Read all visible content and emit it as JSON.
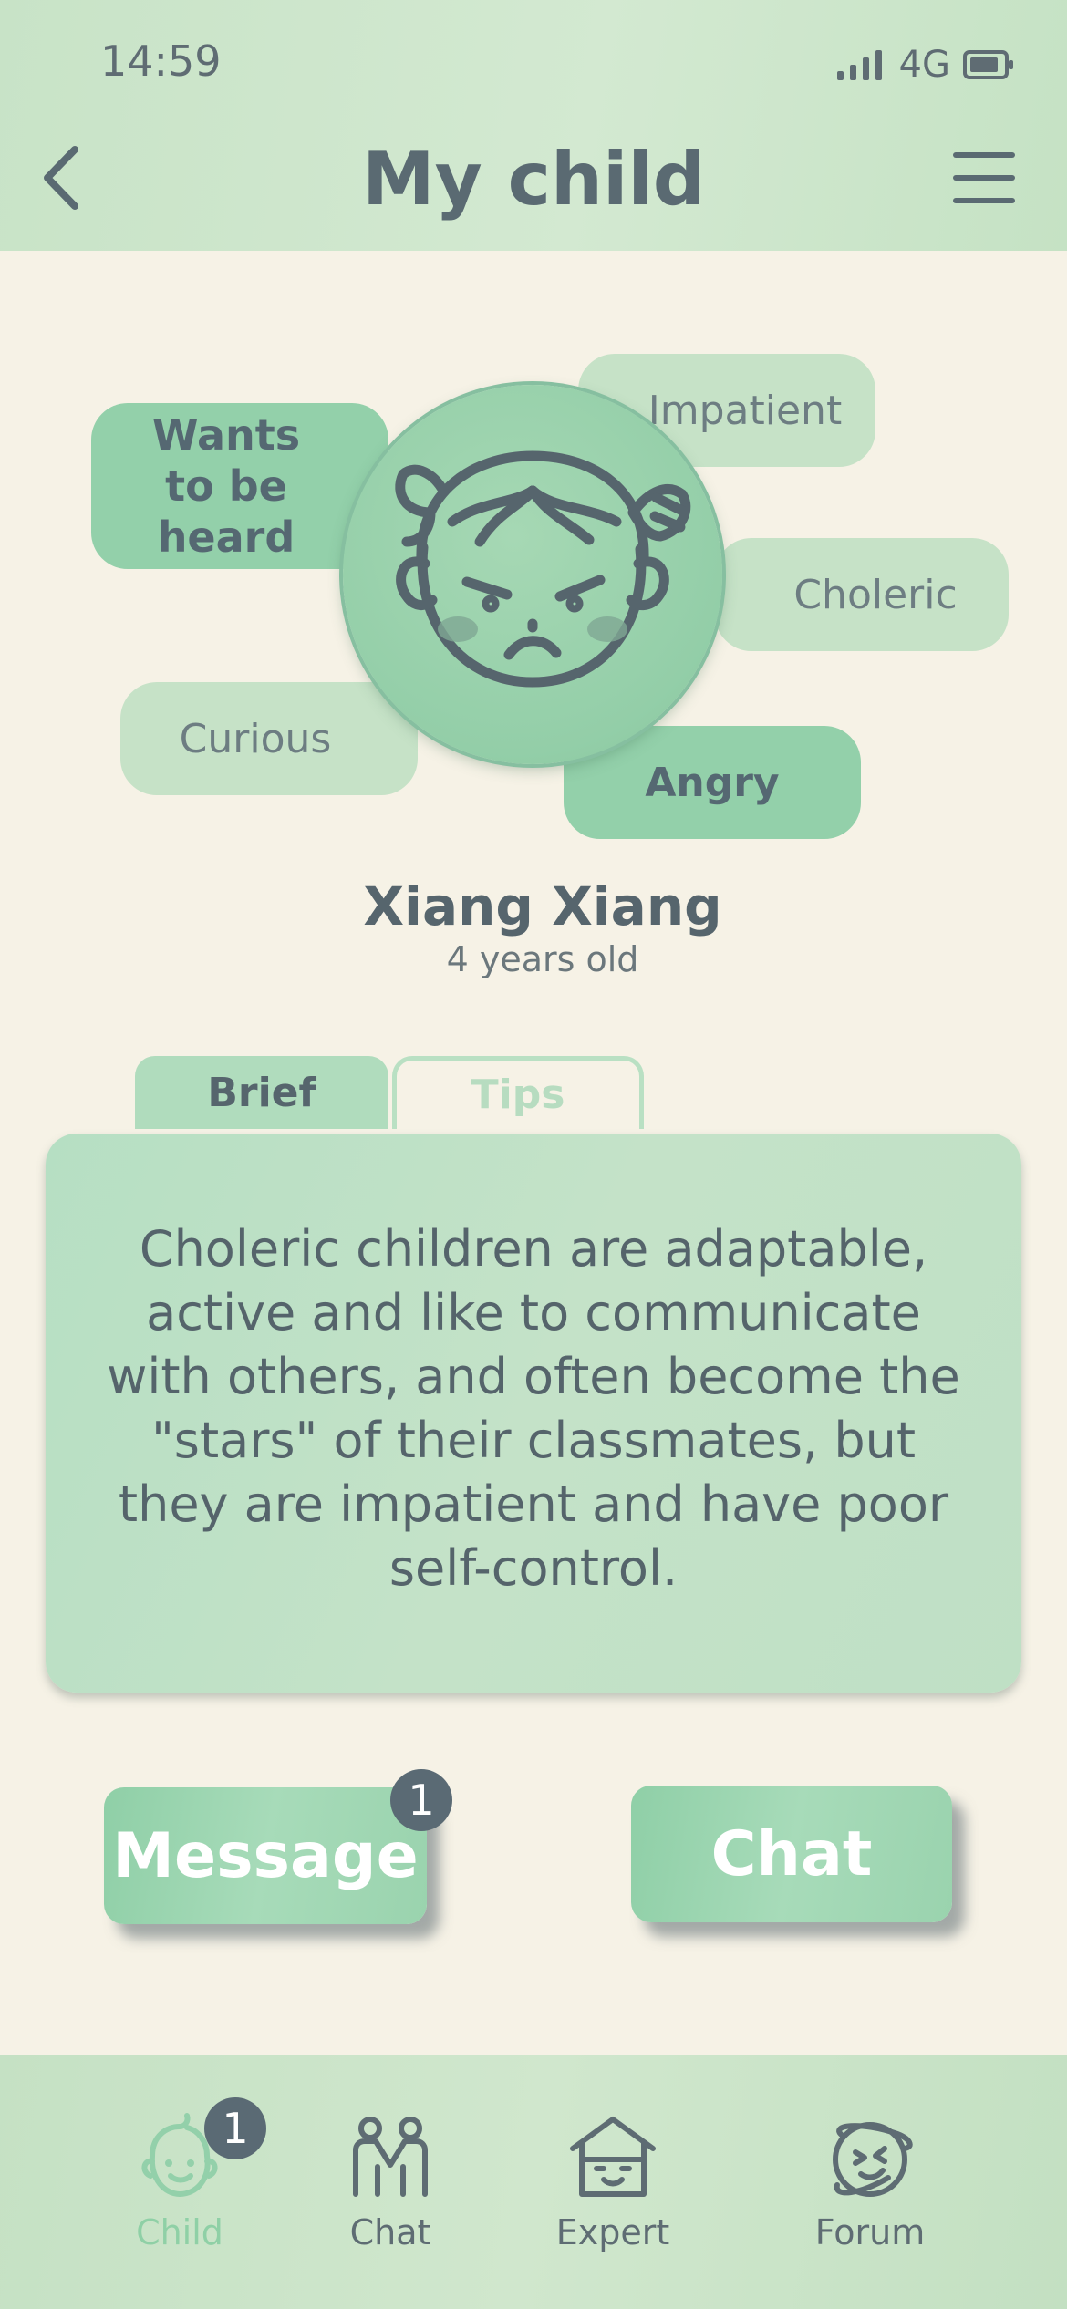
{
  "status_bar": {
    "time": "14:59",
    "network": "4G"
  },
  "header": {
    "title": "My child"
  },
  "tags": {
    "wants_to_be_heard": "Wants to be heard",
    "impatient": "Impatient",
    "choleric": "Choleric",
    "curious": "Curious",
    "angry": "Angry"
  },
  "child": {
    "name": "Xiang Xiang",
    "age": "4 years old"
  },
  "tabs": {
    "brief": "Brief",
    "tips": "Tips",
    "selected": "Brief"
  },
  "card": {
    "text": "Choleric children are adaptable, active and like to communicate with others, and often become the \"stars\" of their classmates, but they are impatient and have poor self-control."
  },
  "actions": {
    "message_label": "Message",
    "message_badge": "1",
    "chat_label": "Chat"
  },
  "nav": {
    "items": [
      {
        "label": "Child",
        "icon": "baby-face-icon",
        "badge": "1",
        "active": true
      },
      {
        "label": "Chat",
        "icon": "people-icon"
      },
      {
        "label": "Expert",
        "icon": "expert-house-icon"
      },
      {
        "label": "Forum",
        "icon": "planet-icon"
      }
    ]
  },
  "colors": {
    "accent_green": "#93d0aa",
    "light_green": "#c6e2c7",
    "background": "#f6f2e6",
    "text_dark": "#5a6a72"
  }
}
